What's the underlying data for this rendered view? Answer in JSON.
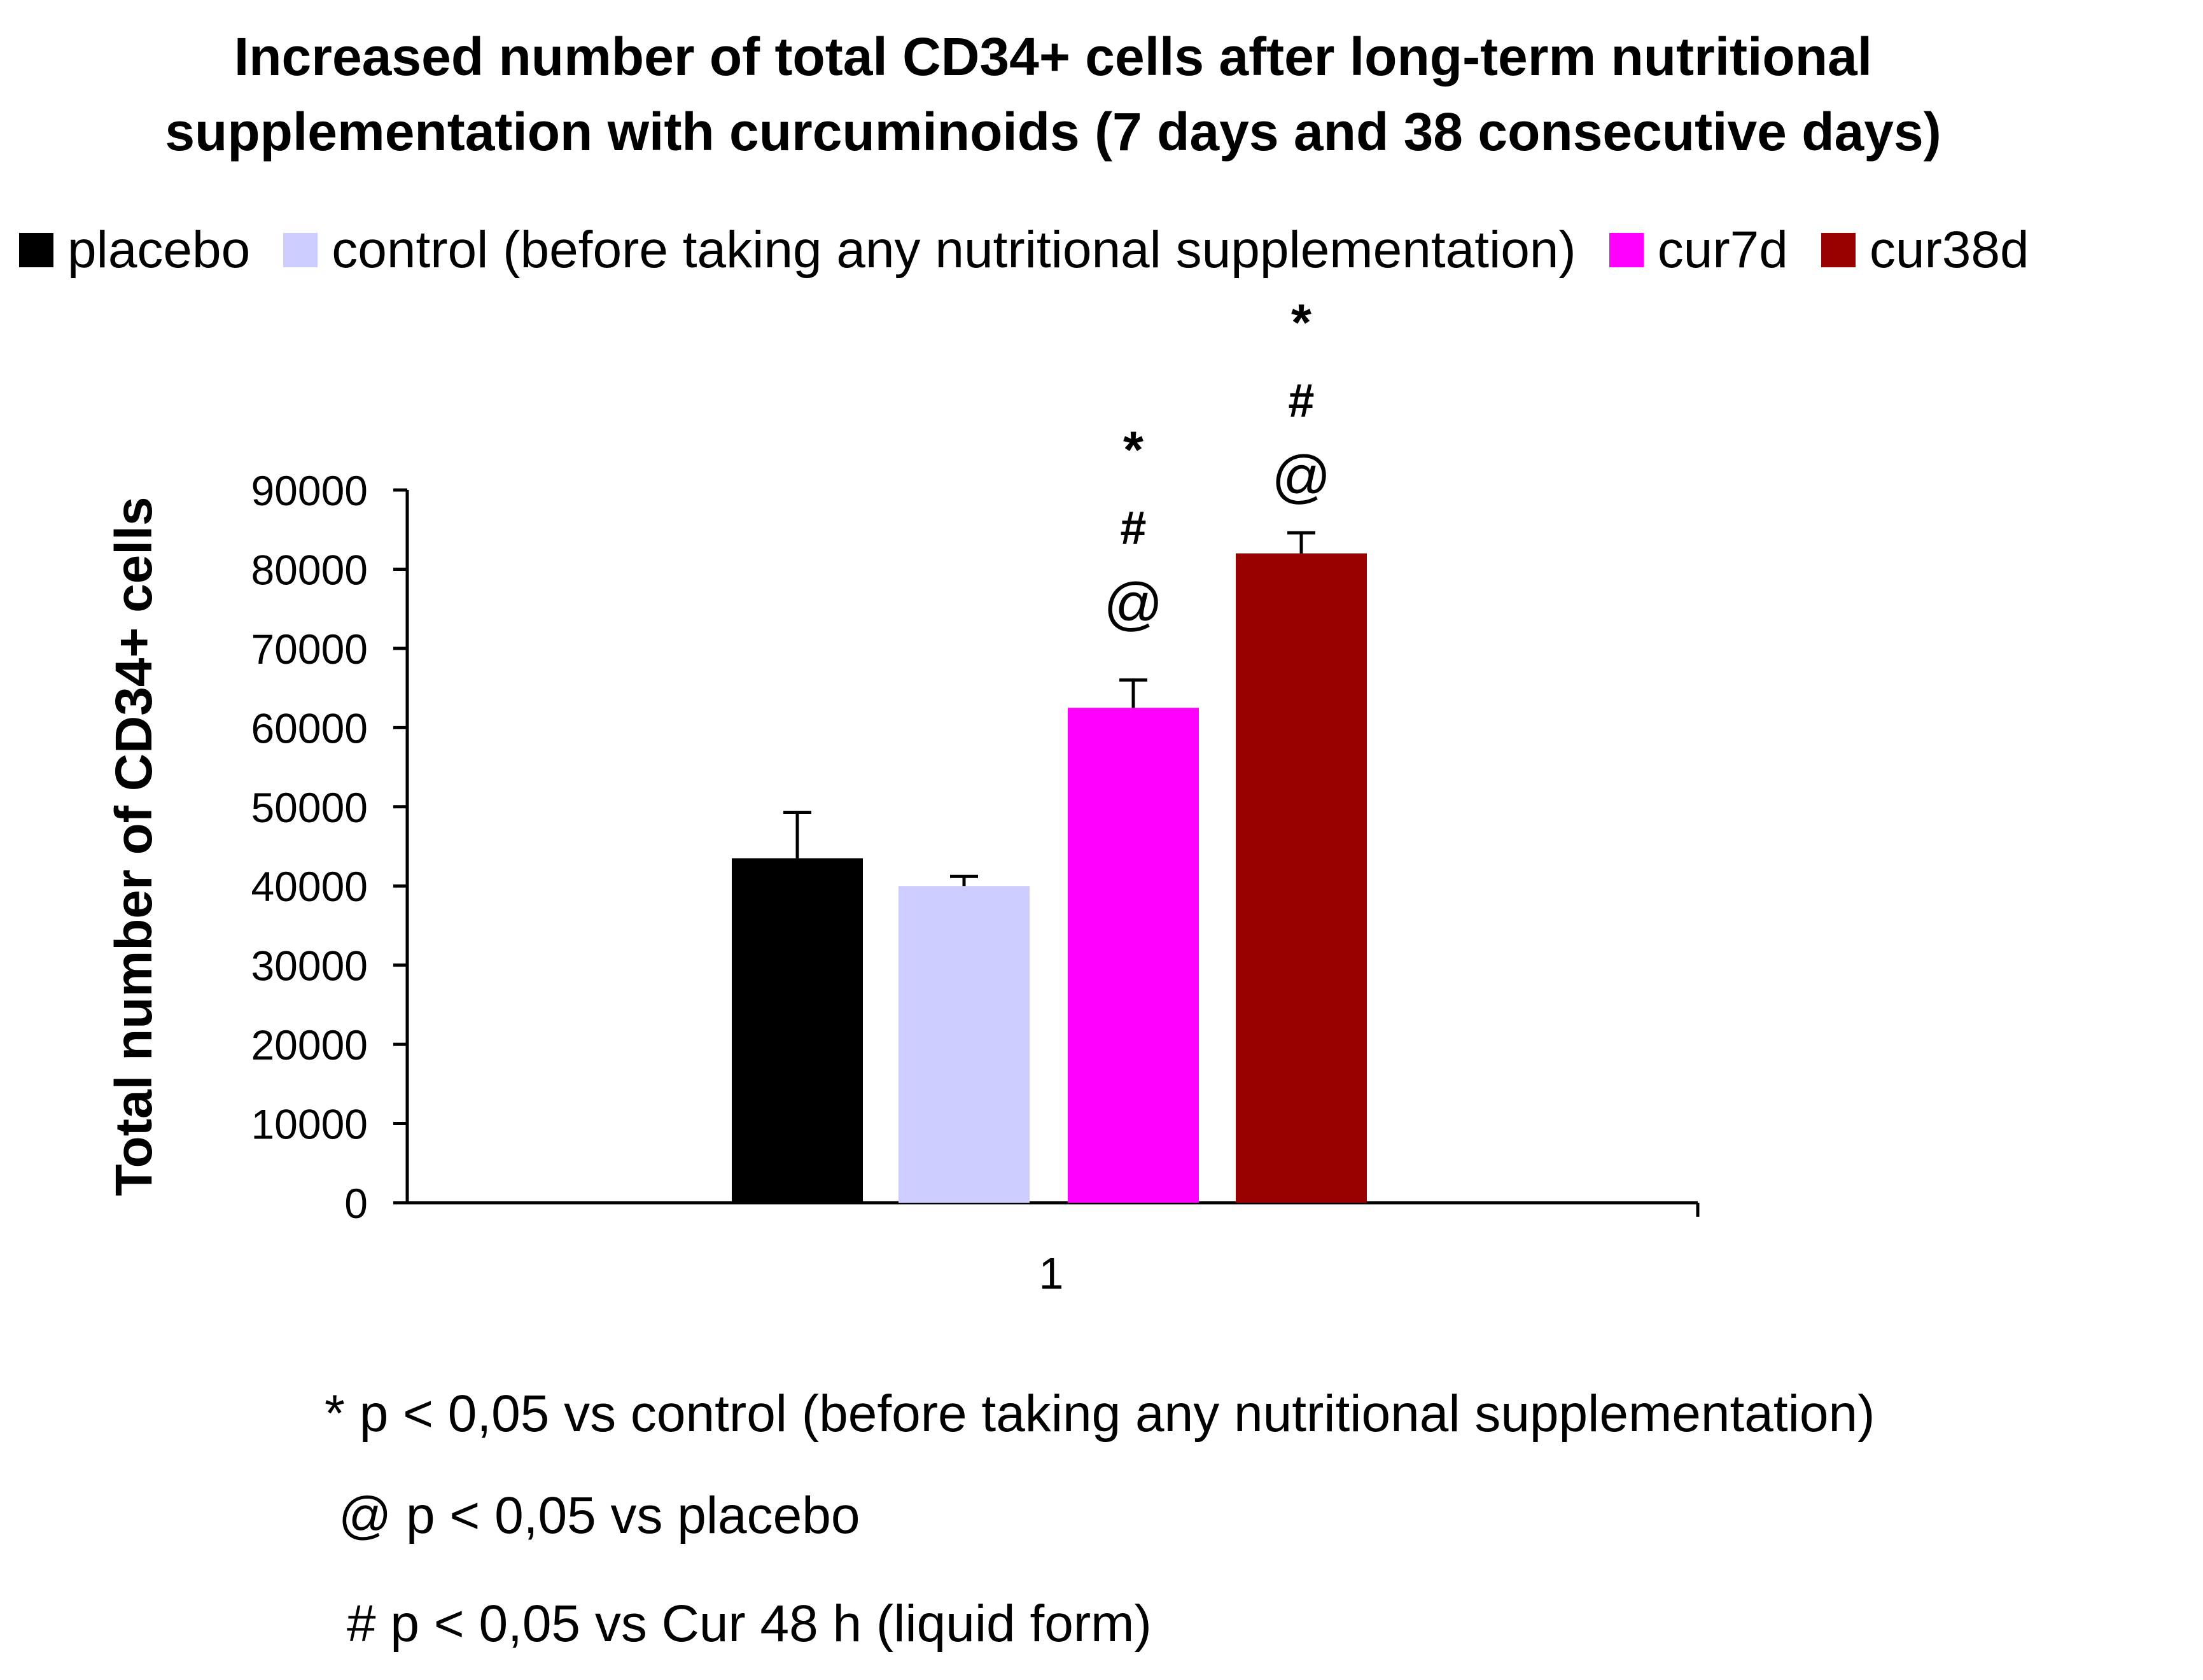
{
  "title": {
    "line1": "Increased number of total CD34+ cells after long-term nutritional",
    "line2": "supplementation with curcuminoids (7 days and 38 consecutive days)"
  },
  "legend": [
    {
      "label": "placebo",
      "color": "#000000"
    },
    {
      "label": "control (before taking any nutritional supplementation)",
      "color": "#ccccff"
    },
    {
      "label": "cur7d",
      "color": "#ff00ff"
    },
    {
      "label": "cur38d",
      "color": "#990000"
    }
  ],
  "chart_data": {
    "type": "bar",
    "title": "Increased number of total CD34+ cells after long-term nutritional supplementation with curcuminoids (7 days and 38 consecutive days)",
    "xlabel": "",
    "ylabel": "Total number of CD34+ cells",
    "ylim": [
      0,
      90000
    ],
    "yticks": [
      0,
      10000,
      20000,
      30000,
      40000,
      50000,
      60000,
      70000,
      80000,
      90000
    ],
    "categories": [
      "1"
    ],
    "grid": false,
    "legend_position": "top",
    "series": [
      {
        "name": "placebo",
        "values": [
          43500
        ],
        "error": [
          5800
        ],
        "color": "#000000",
        "annotations": []
      },
      {
        "name": "control (before taking any nutritional supplementation)",
        "values": [
          40000
        ],
        "error": [
          1200
        ],
        "color": "#ccccff",
        "annotations": []
      },
      {
        "name": "cur7d",
        "values": [
          62500
        ],
        "error": [
          3500
        ],
        "color": "#ff00ff",
        "annotations": [
          "*",
          "#",
          "@"
        ]
      },
      {
        "name": "cur38d",
        "values": [
          82000
        ],
        "error": [
          2600
        ],
        "color": "#990000",
        "annotations": [
          "*",
          "#",
          "@"
        ]
      }
    ]
  },
  "footnotes": [
    "* p < 0,05 vs control (before taking any nutritional supplementation)",
    "@ p < 0,05 vs placebo",
    "# p < 0,05 vs Cur 48 h (liquid form)"
  ]
}
